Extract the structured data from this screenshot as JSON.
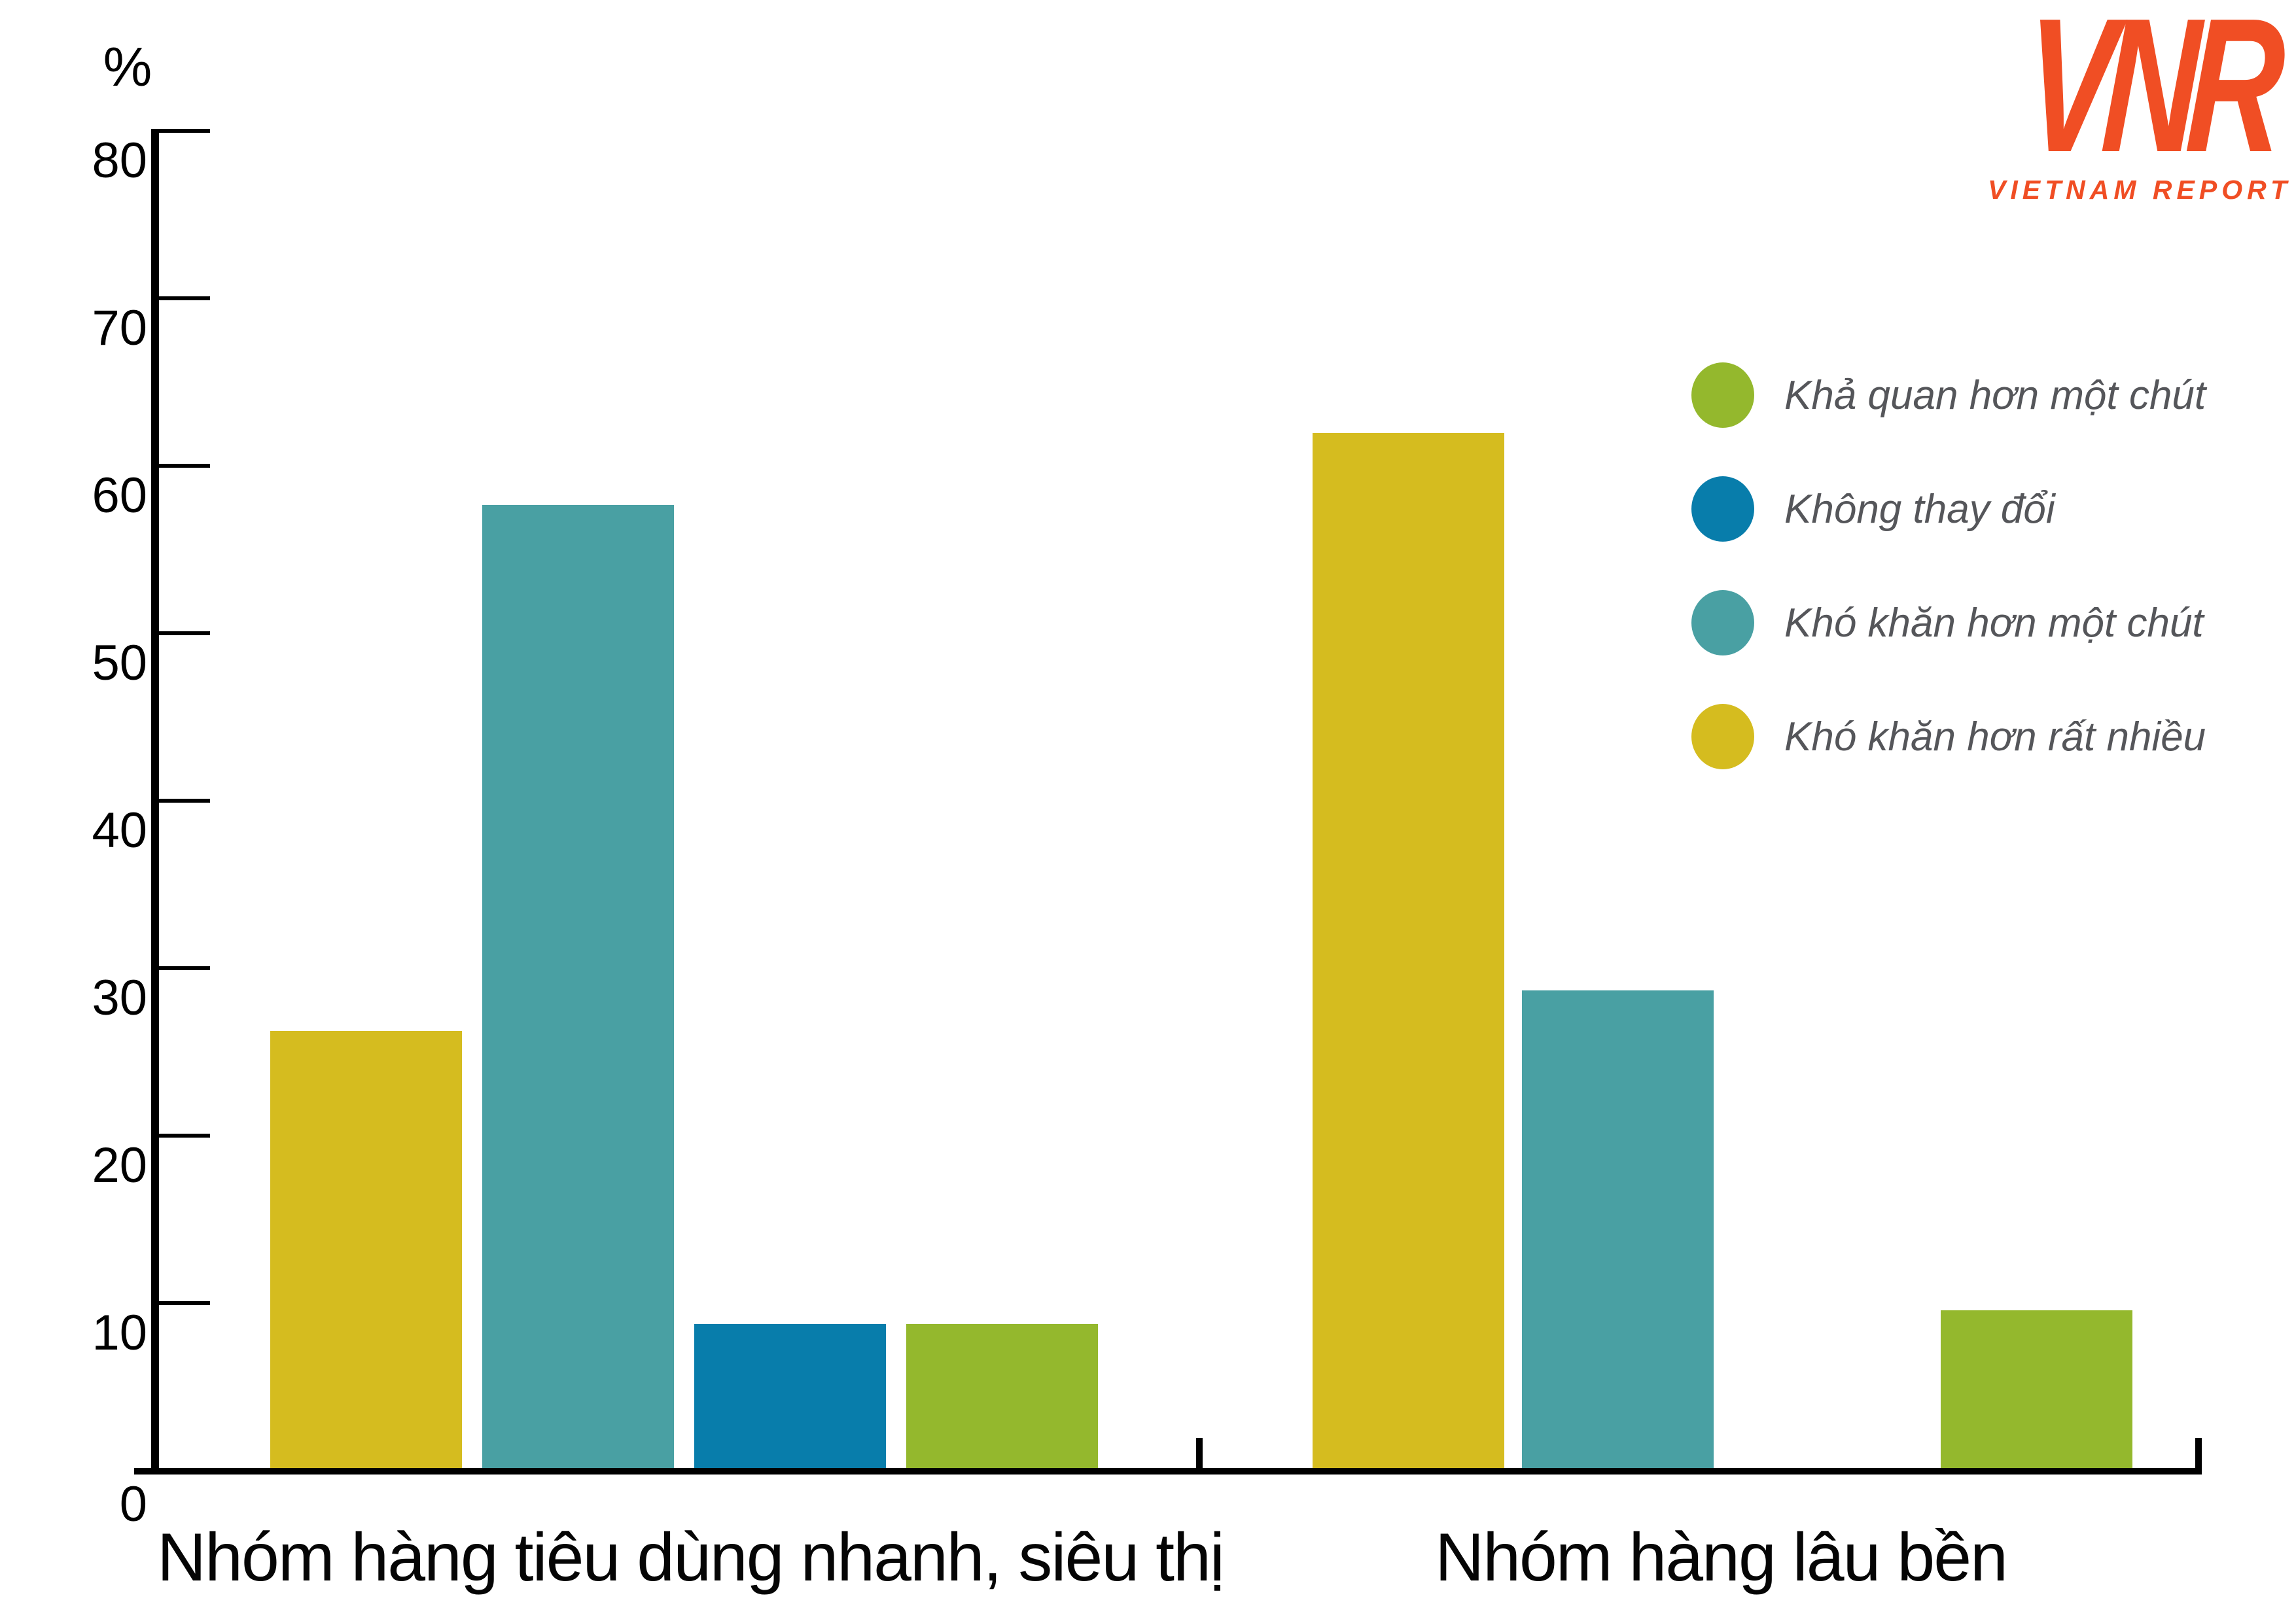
{
  "logo": {
    "letters": "VNR",
    "subtitle": "VIETNAM REPORT",
    "color": "#f04e24"
  },
  "chart_data": {
    "type": "bar",
    "ylabel": "%",
    "ylim": [
      0,
      80
    ],
    "yticks": [
      0,
      10,
      20,
      30,
      40,
      50,
      60,
      70,
      80
    ],
    "grid": false,
    "legend_position": "right",
    "categories": [
      "Nhóm hàng tiêu dùng nhanh, siêu thị",
      "Nhóm hàng lâu bền"
    ],
    "series": [
      {
        "name": "Khả quan hơn một chút",
        "color": "#94b82d",
        "values": [
          8.6,
          9.4
        ]
      },
      {
        "name": "Không thay đổi",
        "color": "#087dab",
        "values": [
          8.6,
          null
        ]
      },
      {
        "name": "Khó khăn hơn một chút",
        "color": "#49a0a3",
        "values": [
          57.5,
          28.5
        ]
      },
      {
        "name": "Khó khăn hơn rất nhiều",
        "color": "#d5bc1f",
        "values": [
          26.1,
          61.8
        ]
      }
    ],
    "bar_order": "per category left-to-right: Khó khăn hơn rất nhiều, Khó khăn hơn một chút, Không thay đổi, Khả quan hơn một chút; 'Không thay đổi' has no bar in second category"
  }
}
